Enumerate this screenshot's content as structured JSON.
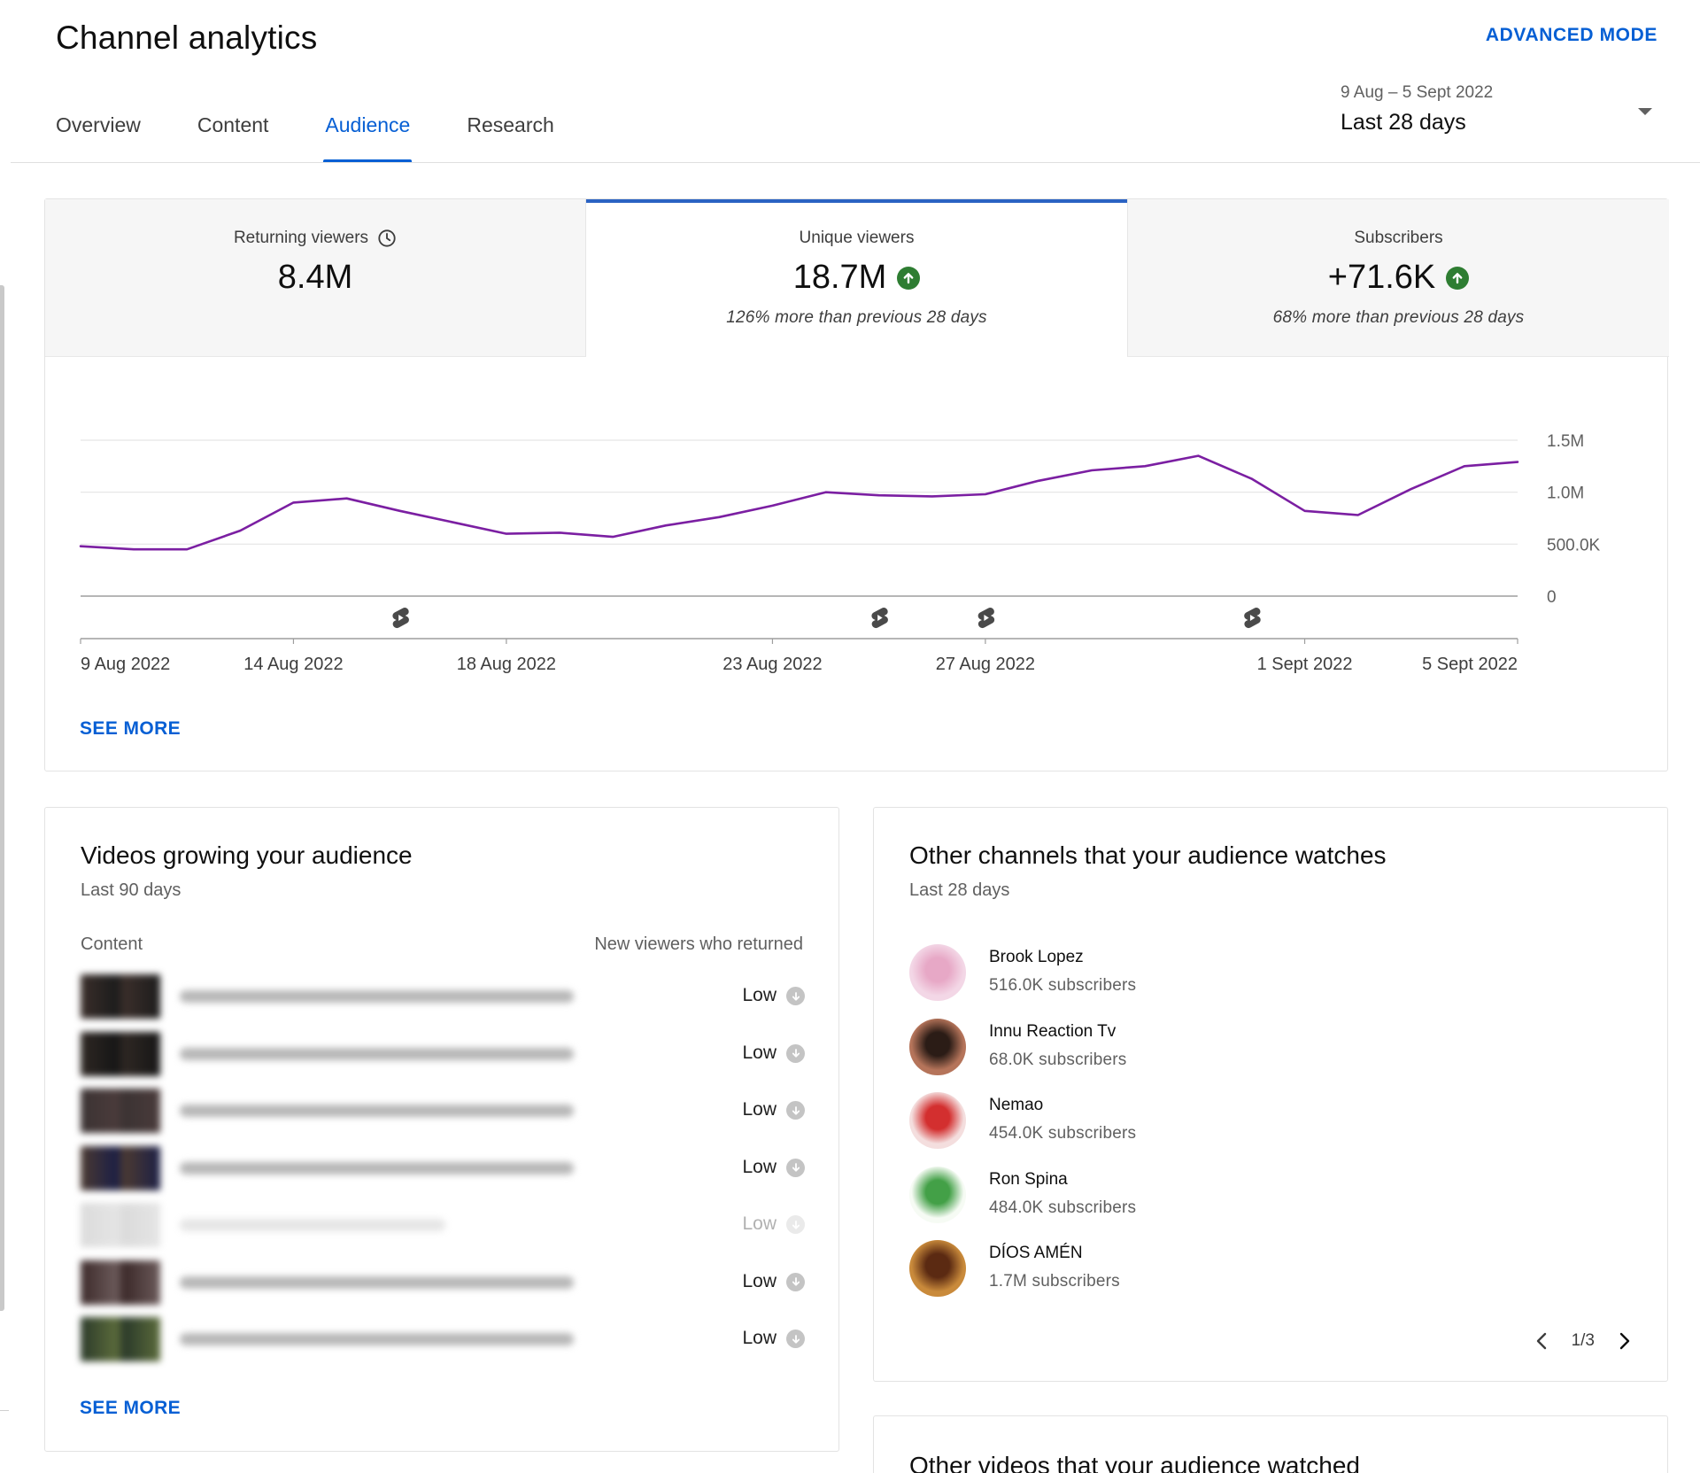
{
  "header": {
    "title": "Channel analytics",
    "advanced_mode": "ADVANCED MODE"
  },
  "tabs": [
    {
      "label": "Overview",
      "active": false
    },
    {
      "label": "Content",
      "active": false
    },
    {
      "label": "Audience",
      "active": true
    },
    {
      "label": "Research",
      "active": false
    }
  ],
  "date_picker": {
    "range": "9 Aug – 5 Sept 2022",
    "label": "Last 28 days"
  },
  "metrics": [
    {
      "label": "Returning viewers",
      "value": "8.4M",
      "icon": "clock-icon",
      "trend": "",
      "sub": ""
    },
    {
      "label": "Unique viewers",
      "value": "18.7M",
      "icon": "",
      "trend": "up",
      "sub": "126% more than previous 28 days",
      "selected": true
    },
    {
      "label": "Subscribers",
      "value": "+71.6K",
      "icon": "",
      "trend": "up",
      "sub": "68% more than previous 28 days"
    }
  ],
  "chart_data": {
    "type": "line",
    "series": [
      {
        "color": "#7b1fa2",
        "values": [
          480000,
          450000,
          450000,
          630000,
          900000,
          940000,
          820000,
          710000,
          600000,
          610000,
          570000,
          680000,
          760000,
          870000,
          1000000,
          970000,
          960000,
          980000,
          1110000,
          1210000,
          1250000,
          1350000,
          1130000,
          820000,
          780000,
          1030000,
          1250000,
          1290000
        ]
      }
    ],
    "x_tick_labels": [
      {
        "label": "9 Aug 2022",
        "index": 0
      },
      {
        "label": "14 Aug 2022",
        "index": 4
      },
      {
        "label": "18 Aug 2022",
        "index": 8
      },
      {
        "label": "23 Aug 2022",
        "index": 13
      },
      {
        "label": "27 Aug 2022",
        "index": 17
      },
      {
        "label": "1 Sept 2022",
        "index": 23
      },
      {
        "label": "5 Sept 2022",
        "index": 27
      }
    ],
    "y_tick_labels": [
      {
        "label": "0",
        "value": 0
      },
      {
        "label": "500.0K",
        "value": 500000
      },
      {
        "label": "1.0M",
        "value": 1000000
      },
      {
        "label": "1.5M",
        "value": 1500000
      }
    ],
    "ylim": [
      0,
      1500000
    ],
    "grid": true,
    "shorts_markers": [
      6,
      15,
      17,
      22
    ],
    "marker_icon": "shorts-icon"
  },
  "metrics_card": {
    "see_more": "SEE MORE"
  },
  "videos_card": {
    "title": "Videos growing your audience",
    "subtitle": "Last 90 days",
    "col_content": "Content",
    "col_metric": "New viewers who returned",
    "see_more": "SEE MORE",
    "rows": [
      {
        "value": "Low",
        "thumb_a": "#3a2e2a",
        "thumb_b": "#1c1c1c",
        "faded": false
      },
      {
        "value": "Low",
        "thumb_a": "#2e2723",
        "thumb_b": "#161616",
        "faded": false
      },
      {
        "value": "Low",
        "thumb_a": "#3b3333",
        "thumb_b": "#4a3b3b",
        "faded": false
      },
      {
        "value": "Low",
        "thumb_a": "#4b3a32",
        "thumb_b": "#1c1f45",
        "faded": false
      },
      {
        "value": "Low",
        "thumb_a": "#9a9a9a",
        "thumb_b": "#b5b5b5",
        "faded": true
      },
      {
        "value": "Low",
        "thumb_a": "#3c2a2a",
        "thumb_b": "#6b5a5a",
        "faded": false
      },
      {
        "value": "Low",
        "thumb_a": "#2b3a2a",
        "thumb_b": "#5b6b3b",
        "faded": false
      }
    ]
  },
  "channels_card": {
    "title": "Other channels that your audience watches",
    "subtitle": "Last 28 days",
    "pager": "1/3",
    "channels": [
      {
        "name": "Brook Lopez",
        "subs": "516.0K subscribers",
        "avatar_bg": "#f3d7e6",
        "avatar_fg": "#e7a8c6"
      },
      {
        "name": "Innu Reaction Tv",
        "subs": "68.0K subscribers",
        "avatar_bg": "#b5745a",
        "avatar_fg": "#2b1c16"
      },
      {
        "name": "Nemao",
        "subs": "454.0K subscribers",
        "avatar_bg": "#f4dede",
        "avatar_fg": "#d32f2f"
      },
      {
        "name": "Ron Spina",
        "subs": "484.0K subscribers",
        "avatar_bg": "#f6fbf4",
        "avatar_fg": "#43a047"
      },
      {
        "name": "DÍOS AMÉN",
        "subs": "1.7M subscribers",
        "avatar_bg": "#c98a3b",
        "avatar_fg": "#5b2a12"
      }
    ]
  },
  "other_videos_card": {
    "title": "Other videos that your audience watched"
  }
}
